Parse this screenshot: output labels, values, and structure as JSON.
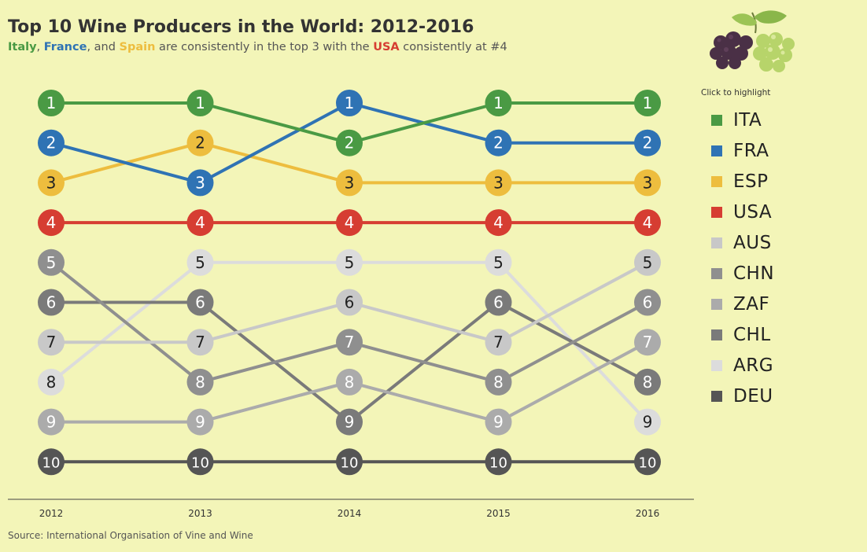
{
  "header": {
    "title": "Top 10 Wine Producers in the World: 2012-2016",
    "subtitle": {
      "parts": [
        {
          "text": "Italy",
          "color": "#4a9a44"
        },
        {
          "text": ", ",
          "color": null
        },
        {
          "text": "France",
          "color": "#2f73b4"
        },
        {
          "text": ", and ",
          "color": null
        },
        {
          "text": "Spain",
          "color": "#edbd3e"
        },
        {
          "text": " are consistently in the top 3 with the ",
          "color": null
        },
        {
          "text": "USA",
          "color": "#d63d32"
        },
        {
          "text": " consistently at #4",
          "color": null
        }
      ]
    }
  },
  "legend": {
    "hint": "Click to highlight",
    "items": [
      {
        "label": "ITA",
        "color": "#4a9a44"
      },
      {
        "label": "FRA",
        "color": "#2f73b4"
      },
      {
        "label": "ESP",
        "color": "#edbd3e"
      },
      {
        "label": "USA",
        "color": "#d63d32"
      },
      {
        "label": "AUS",
        "color": "#c8c8c8"
      },
      {
        "label": "CHN",
        "color": "#8f8f8f"
      },
      {
        "label": "ZAF",
        "color": "#ababab"
      },
      {
        "label": "CHL",
        "color": "#7a7a7a"
      },
      {
        "label": "ARG",
        "color": "#dcdcdc"
      },
      {
        "label": "DEU",
        "color": "#555555"
      }
    ]
  },
  "chart_data": {
    "type": "line",
    "subtype": "bump",
    "x": [
      "2012",
      "2013",
      "2014",
      "2015",
      "2016"
    ],
    "ylim": [
      1,
      10
    ],
    "y_reversed": true,
    "grid": false,
    "legend_position": "right",
    "series": [
      {
        "name": "ITA",
        "color": "#4a9a44",
        "values": [
          1,
          1,
          2,
          1,
          1
        ]
      },
      {
        "name": "FRA",
        "color": "#2f73b4",
        "values": [
          2,
          3,
          1,
          2,
          2
        ]
      },
      {
        "name": "ESP",
        "color": "#edbd3e",
        "values": [
          3,
          2,
          3,
          3,
          3
        ]
      },
      {
        "name": "USA",
        "color": "#d63d32",
        "values": [
          4,
          4,
          4,
          4,
          4
        ]
      },
      {
        "name": "AUS",
        "color": "#c8c8c8",
        "values": [
          7,
          7,
          6,
          7,
          5
        ]
      },
      {
        "name": "CHN",
        "color": "#8f8f8f",
        "values": [
          5,
          8,
          7,
          8,
          6
        ]
      },
      {
        "name": "ZAF",
        "color": "#ababab",
        "values": [
          9,
          9,
          8,
          9,
          7
        ]
      },
      {
        "name": "CHL",
        "color": "#7a7a7a",
        "values": [
          6,
          6,
          9,
          6,
          8
        ]
      },
      {
        "name": "ARG",
        "color": "#dcdcdc",
        "values": [
          8,
          5,
          5,
          5,
          9
        ]
      },
      {
        "name": "DEU",
        "color": "#555555",
        "values": [
          10,
          10,
          10,
          10,
          10
        ]
      }
    ]
  },
  "footer": {
    "source": "Source: International Organisation of Vine and Wine"
  }
}
